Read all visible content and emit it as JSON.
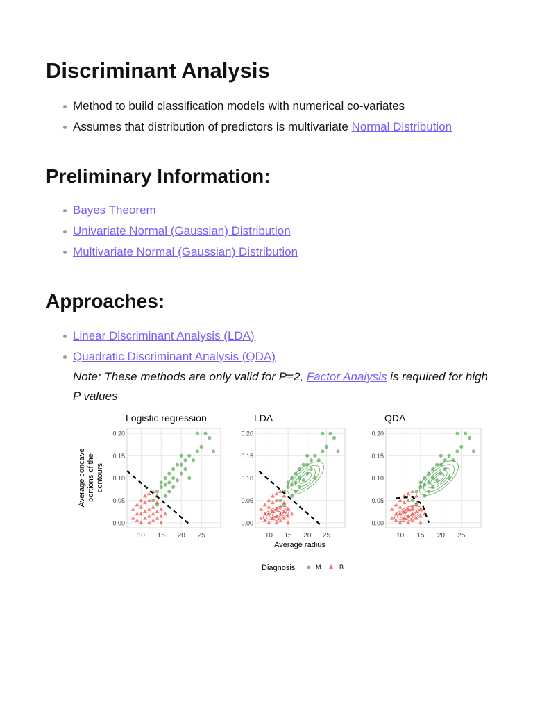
{
  "sections": [
    {
      "title": "Discriminant Analysis",
      "items": [
        {
          "text": "Method to build classification models with numerical co-variates"
        },
        {
          "text": "Assumes that distribution of predictors is multivariate ",
          "link": "Normal Distribution"
        }
      ]
    },
    {
      "title": "Preliminary Information:",
      "items": [
        {
          "link": "Bayes Theorem"
        },
        {
          "link": "Univariate Normal (Gaussian) Distribution"
        },
        {
          "link": "Multivariate Normal (Gaussian) Distribution"
        }
      ]
    },
    {
      "title": "Approaches:",
      "items": [
        {
          "link": "Linear Discriminant Analysis (LDA)"
        },
        {
          "link": "Quadratic Discriminant Analysis (QDA)"
        }
      ],
      "note": {
        "before": "Note: These methods are only valid for P=2, ",
        "link": "Factor Analysis",
        "after": " is required for high P values"
      }
    }
  ],
  "figure": {
    "type": "scatter",
    "xlim": [
      6.5,
      29.8
    ],
    "ylim": [
      -0.011,
      0.211
    ],
    "xticks": [
      10,
      15,
      20,
      25
    ],
    "yticks": [
      {
        "value": 0,
        "label": "0.00"
      },
      {
        "value": 0.05,
        "label": "0.05"
      },
      {
        "value": 0.1,
        "label": "0.10"
      },
      {
        "value": 0.15,
        "label": "0.15"
      },
      {
        "value": 0.2,
        "label": "0.20"
      }
    ],
    "y_label": [
      "Average concave",
      "portions of the",
      "contours"
    ],
    "x_label": "Average radius",
    "legend_title": "Diagnosis",
    "series": [
      {
        "name": "M",
        "color": "#4aa346",
        "x": [
          13,
          14,
          15,
          15,
          16,
          16,
          17,
          17,
          18,
          18,
          19,
          19,
          20,
          20,
          21,
          21,
          22,
          23,
          24,
          25,
          26,
          27,
          28,
          24,
          16,
          18,
          14,
          20,
          22,
          17
        ],
        "y": [
          0.05,
          0.07,
          0.08,
          0.09,
          0.085,
          0.1,
          0.09,
          0.11,
          0.1,
          0.12,
          0.095,
          0.13,
          0.11,
          0.13,
          0.12,
          0.14,
          0.15,
          0.14,
          0.16,
          0.17,
          0.2,
          0.19,
          0.16,
          0.2,
          0.06,
          0.08,
          0.04,
          0.15,
          0.1,
          0.07
        ]
      },
      {
        "name": "B",
        "color": "#ee3b35",
        "x": [
          8,
          9,
          9,
          10,
          10,
          10,
          11,
          11,
          11,
          12,
          12,
          12,
          12,
          13,
          13,
          13,
          14,
          14,
          14,
          15,
          15,
          16,
          11,
          10,
          13,
          9,
          12,
          14,
          15,
          8
        ],
        "y": [
          0.01,
          0.02,
          0.005,
          0,
          0.02,
          0.035,
          0.01,
          0.025,
          0.045,
          0,
          0.015,
          0.03,
          0.05,
          0.005,
          0.02,
          0.035,
          0.01,
          0.025,
          0.06,
          0.015,
          0.03,
          0.02,
          0.06,
          0.05,
          0.07,
          0.04,
          0.065,
          0.045,
          0,
          0.03
        ]
      }
    ],
    "panels": [
      {
        "title": "Logistic regression",
        "boundary": {
          "x": [
            6.5,
            22
          ],
          "y": [
            0.116,
            -0.003
          ]
        }
      },
      {
        "title": "LDA",
        "boundary": {
          "x": [
            7.5,
            23.5
          ],
          "y": [
            0.115,
            -0.005
          ]
        }
      },
      {
        "title": "QDA",
        "boundary": {
          "x": [
            9,
            13,
            15.5,
            17
          ],
          "y": [
            0.055,
            0.058,
            0.04,
            0
          ]
        }
      }
    ]
  }
}
